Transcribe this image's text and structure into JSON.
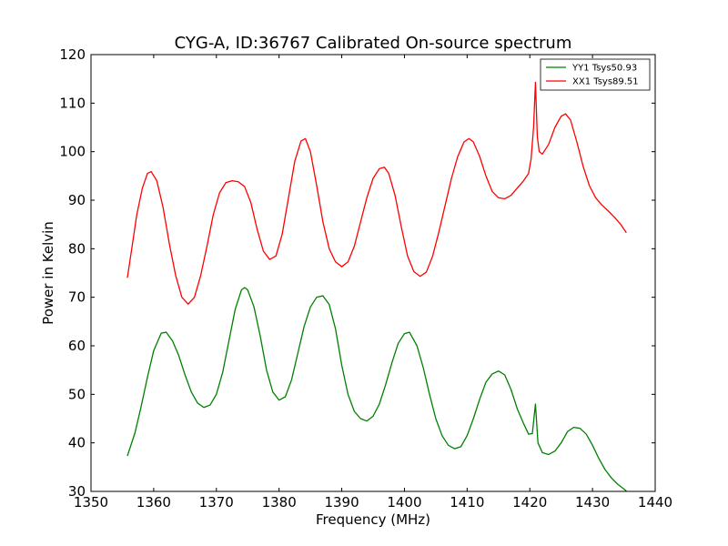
{
  "chart_data": {
    "type": "line",
    "title": "CYG-A, ID:36767 Calibrated On-source spectrum",
    "xlabel": "Frequency (MHz)",
    "ylabel": "Power in Kelvin",
    "xlim": [
      1350,
      1440
    ],
    "ylim": [
      30,
      120
    ],
    "xticks": [
      1350,
      1360,
      1370,
      1380,
      1390,
      1400,
      1410,
      1420,
      1430,
      1440
    ],
    "yticks": [
      30,
      40,
      50,
      60,
      70,
      80,
      90,
      100,
      110,
      120
    ],
    "grid": false,
    "legend_position": "top-right",
    "series": [
      {
        "name": "YY1 Tsys50.93",
        "color": "#008000",
        "points": [
          [
            1355.8,
            37.3
          ],
          [
            1357.0,
            42.0
          ],
          [
            1358.0,
            47.5
          ],
          [
            1359.0,
            53.5
          ],
          [
            1360.0,
            59.0
          ],
          [
            1361.2,
            62.6
          ],
          [
            1362.0,
            62.8
          ],
          [
            1363.0,
            61.0
          ],
          [
            1364.0,
            58.0
          ],
          [
            1365.0,
            54.0
          ],
          [
            1366.0,
            50.5
          ],
          [
            1367.0,
            48.2
          ],
          [
            1368.0,
            47.3
          ],
          [
            1369.0,
            47.8
          ],
          [
            1370.0,
            50.0
          ],
          [
            1371.0,
            54.5
          ],
          [
            1372.0,
            61.0
          ],
          [
            1373.0,
            67.5
          ],
          [
            1374.0,
            71.5
          ],
          [
            1374.5,
            72.0
          ],
          [
            1375.0,
            71.5
          ],
          [
            1376.0,
            68.0
          ],
          [
            1377.0,
            62.0
          ],
          [
            1378.0,
            55.0
          ],
          [
            1379.0,
            50.5
          ],
          [
            1380.0,
            48.8
          ],
          [
            1381.0,
            49.5
          ],
          [
            1382.0,
            53.0
          ],
          [
            1383.0,
            58.5
          ],
          [
            1384.0,
            64.0
          ],
          [
            1385.0,
            68.0
          ],
          [
            1386.0,
            70.0
          ],
          [
            1387.0,
            70.3
          ],
          [
            1388.0,
            68.5
          ],
          [
            1389.0,
            63.5
          ],
          [
            1390.0,
            56.0
          ],
          [
            1391.0,
            50.0
          ],
          [
            1392.0,
            46.5
          ],
          [
            1393.0,
            45.0
          ],
          [
            1394.0,
            44.5
          ],
          [
            1395.0,
            45.5
          ],
          [
            1396.0,
            48.0
          ],
          [
            1397.0,
            52.0
          ],
          [
            1398.0,
            56.5
          ],
          [
            1399.0,
            60.5
          ],
          [
            1400.0,
            62.5
          ],
          [
            1400.8,
            62.8
          ],
          [
            1402.0,
            60.0
          ],
          [
            1403.0,
            55.5
          ],
          [
            1404.0,
            50.0
          ],
          [
            1405.0,
            45.0
          ],
          [
            1406.0,
            41.5
          ],
          [
            1407.0,
            39.5
          ],
          [
            1408.0,
            38.8
          ],
          [
            1409.0,
            39.2
          ],
          [
            1410.0,
            41.5
          ],
          [
            1411.0,
            45.0
          ],
          [
            1412.0,
            49.0
          ],
          [
            1413.0,
            52.5
          ],
          [
            1414.0,
            54.2
          ],
          [
            1415.0,
            54.8
          ],
          [
            1416.0,
            54.0
          ],
          [
            1417.0,
            51.0
          ],
          [
            1418.0,
            47.0
          ],
          [
            1419.0,
            44.0
          ],
          [
            1419.8,
            41.8
          ],
          [
            1420.4,
            41.9
          ],
          [
            1420.9,
            48.0
          ],
          [
            1421.3,
            40.0
          ],
          [
            1422.0,
            38.0
          ],
          [
            1423.0,
            37.6
          ],
          [
            1424.0,
            38.3
          ],
          [
            1425.0,
            40.0
          ],
          [
            1426.0,
            42.3
          ],
          [
            1427.0,
            43.2
          ],
          [
            1428.0,
            43.0
          ],
          [
            1429.0,
            41.8
          ],
          [
            1430.0,
            39.5
          ],
          [
            1431.0,
            36.8
          ],
          [
            1432.0,
            34.5
          ],
          [
            1433.0,
            32.8
          ],
          [
            1434.0,
            31.5
          ],
          [
            1435.4,
            30.1
          ]
        ]
      },
      {
        "name": "XX1 Tsys89.51",
        "color": "#ff0000",
        "points": [
          [
            1355.8,
            74.0
          ],
          [
            1356.5,
            80.0
          ],
          [
            1357.3,
            87.0
          ],
          [
            1358.2,
            92.5
          ],
          [
            1359.0,
            95.5
          ],
          [
            1359.6,
            95.9
          ],
          [
            1360.5,
            94.0
          ],
          [
            1361.5,
            88.5
          ],
          [
            1362.5,
            81.0
          ],
          [
            1363.5,
            74.5
          ],
          [
            1364.5,
            70.0
          ],
          [
            1365.5,
            68.6
          ],
          [
            1366.5,
            70.0
          ],
          [
            1367.5,
            74.5
          ],
          [
            1368.5,
            80.5
          ],
          [
            1369.5,
            87.0
          ],
          [
            1370.5,
            91.5
          ],
          [
            1371.5,
            93.6
          ],
          [
            1372.5,
            94.0
          ],
          [
            1373.5,
            93.8
          ],
          [
            1374.5,
            92.8
          ],
          [
            1375.5,
            89.5
          ],
          [
            1376.5,
            84.0
          ],
          [
            1377.5,
            79.5
          ],
          [
            1378.5,
            77.8
          ],
          [
            1379.5,
            78.5
          ],
          [
            1380.5,
            83.0
          ],
          [
            1381.5,
            90.5
          ],
          [
            1382.5,
            98.0
          ],
          [
            1383.5,
            102.2
          ],
          [
            1384.2,
            102.7
          ],
          [
            1385.0,
            100.0
          ],
          [
            1386.0,
            93.0
          ],
          [
            1387.0,
            85.5
          ],
          [
            1388.0,
            80.0
          ],
          [
            1389.0,
            77.3
          ],
          [
            1390.0,
            76.3
          ],
          [
            1391.0,
            77.3
          ],
          [
            1392.0,
            80.5
          ],
          [
            1393.0,
            85.5
          ],
          [
            1394.0,
            90.5
          ],
          [
            1395.0,
            94.5
          ],
          [
            1396.0,
            96.5
          ],
          [
            1396.8,
            96.8
          ],
          [
            1397.5,
            95.5
          ],
          [
            1398.5,
            91.0
          ],
          [
            1399.5,
            84.5
          ],
          [
            1400.5,
            78.5
          ],
          [
            1401.5,
            75.3
          ],
          [
            1402.5,
            74.3
          ],
          [
            1403.5,
            75.2
          ],
          [
            1404.5,
            78.5
          ],
          [
            1405.5,
            83.5
          ],
          [
            1406.5,
            89.0
          ],
          [
            1407.5,
            94.5
          ],
          [
            1408.5,
            99.0
          ],
          [
            1409.5,
            102.0
          ],
          [
            1410.3,
            102.7
          ],
          [
            1411.0,
            102.0
          ],
          [
            1412.0,
            99.0
          ],
          [
            1413.0,
            95.0
          ],
          [
            1414.0,
            91.8
          ],
          [
            1415.0,
            90.5
          ],
          [
            1416.0,
            90.3
          ],
          [
            1417.0,
            91.0
          ],
          [
            1418.0,
            92.5
          ],
          [
            1419.0,
            94.0
          ],
          [
            1419.8,
            95.5
          ],
          [
            1420.2,
            98.5
          ],
          [
            1420.6,
            105.0
          ],
          [
            1420.9,
            114.3
          ],
          [
            1421.2,
            103.0
          ],
          [
            1421.5,
            100.0
          ],
          [
            1422.0,
            99.5
          ],
          [
            1423.0,
            101.5
          ],
          [
            1424.0,
            105.0
          ],
          [
            1425.0,
            107.3
          ],
          [
            1425.7,
            107.8
          ],
          [
            1426.5,
            106.5
          ],
          [
            1427.5,
            102.0
          ],
          [
            1428.5,
            97.0
          ],
          [
            1429.5,
            93.0
          ],
          [
            1430.5,
            90.5
          ],
          [
            1431.5,
            89.0
          ],
          [
            1432.5,
            87.8
          ],
          [
            1433.5,
            86.5
          ],
          [
            1434.5,
            85.0
          ],
          [
            1435.4,
            83.3
          ]
        ]
      }
    ]
  }
}
